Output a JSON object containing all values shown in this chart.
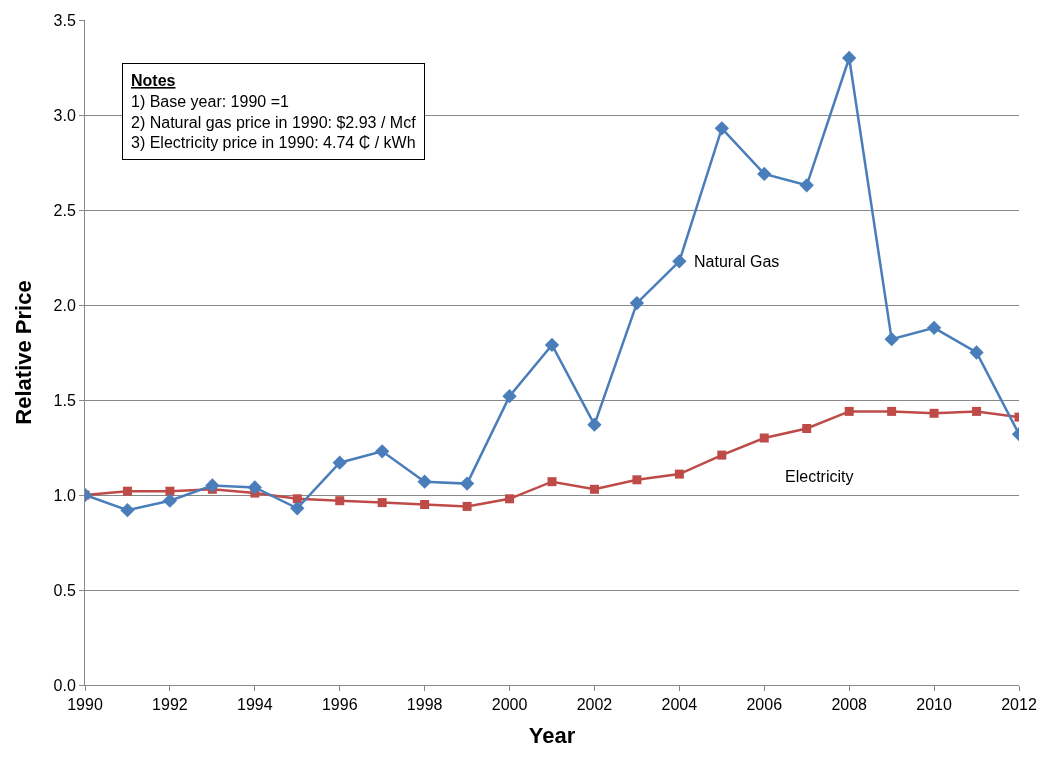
{
  "chart_data": {
    "type": "line",
    "xlabel": "Year",
    "ylabel": "Relative Price",
    "x": [
      1990,
      1991,
      1992,
      1993,
      1994,
      1995,
      1996,
      1997,
      1998,
      1999,
      2000,
      2001,
      2002,
      2003,
      2004,
      2005,
      2006,
      2007,
      2008,
      2009,
      2010,
      2011,
      2012
    ],
    "series": [
      {
        "name": "Natural Gas",
        "color": "#4a7ebb",
        "marker": "diamond",
        "values": [
          1.0,
          0.92,
          0.97,
          1.05,
          1.04,
          0.93,
          1.17,
          1.23,
          1.07,
          1.06,
          1.52,
          1.79,
          1.37,
          2.01,
          2.23,
          2.93,
          2.69,
          2.63,
          3.3,
          1.82,
          1.88,
          1.75,
          1.32
        ]
      },
      {
        "name": "Electricity",
        "color": "#be4b48",
        "marker": "square",
        "values": [
          1.0,
          1.02,
          1.02,
          1.03,
          1.01,
          0.98,
          0.97,
          0.96,
          0.95,
          0.94,
          0.98,
          1.07,
          1.03,
          1.08,
          1.11,
          1.21,
          1.3,
          1.35,
          1.44,
          1.44,
          1.43,
          1.44,
          1.41
        ]
      }
    ],
    "xlim": [
      1990,
      2012
    ],
    "xticks": [
      1990,
      1992,
      1994,
      1996,
      1998,
      2000,
      2002,
      2004,
      2006,
      2008,
      2010,
      2012
    ],
    "ylim": [
      0,
      3.5
    ],
    "yticks": [
      {
        "value": 0,
        "label": "0.0"
      },
      {
        "value": 0.5,
        "label": "0.5"
      },
      {
        "value": 1,
        "label": "1.0"
      },
      {
        "value": 1.5,
        "label": "1.5"
      },
      {
        "value": 2,
        "label": "2.0"
      },
      {
        "value": 2.5,
        "label": "2.5"
      },
      {
        "value": 3,
        "label": "3.0"
      },
      {
        "value": 3.5,
        "label": "3.5"
      }
    ],
    "grid": "y",
    "legend": false,
    "line_style": "solid",
    "annotations": [
      "Notes",
      "1) Base year: 1990 =1",
      "2) Natural gas price in 1990: $2.93 / Mcf",
      "3) Electricity price in 1990: 4.74 ₵ / kWh"
    ]
  }
}
